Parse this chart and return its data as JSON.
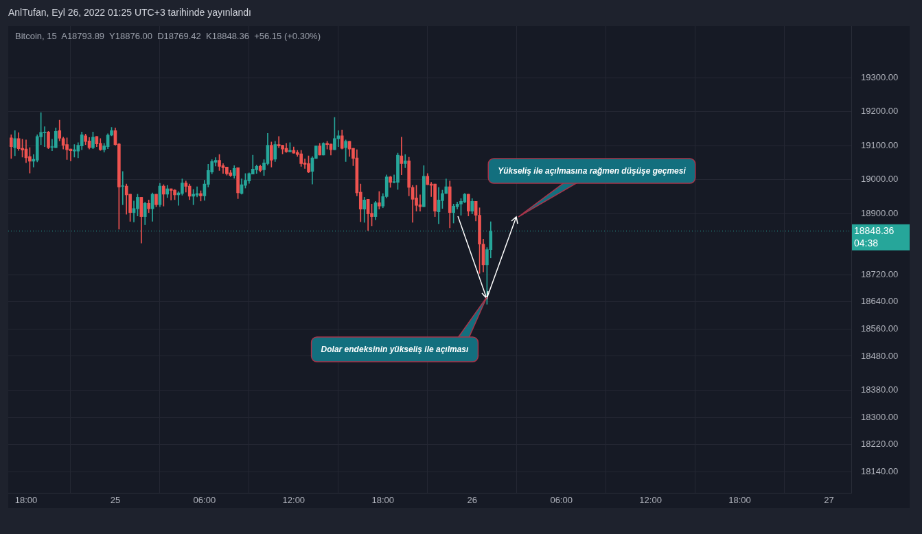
{
  "chart_data": {
    "type": "candlestick",
    "title": "AnlTufan, Eyl 26, 2022 01:25 UTC+3 tarihinde yayınlandı",
    "subtitle": "Bitcoin, 15  A18793.89  Y18876.00  D18769.42  K18848.36  +56.15 (+0.30%)",
    "x": [
      "2022-09-24T17:00",
      "2022-09-24T17:15",
      "2022-09-24T17:30",
      "2022-09-24T17:45",
      "2022-09-24T18:00",
      "2022-09-24T18:15",
      "2022-09-24T18:30",
      "2022-09-24T18:45",
      "2022-09-24T19:00",
      "2022-09-24T19:15",
      "2022-09-24T19:30",
      "2022-09-24T19:45",
      "2022-09-24T20:00",
      "2022-09-24T20:15",
      "2022-09-24T20:30",
      "2022-09-24T20:45",
      "2022-09-24T21:00",
      "2022-09-24T21:15",
      "2022-09-24T21:30",
      "2022-09-24T21:45",
      "2022-09-24T22:00",
      "2022-09-24T22:15",
      "2022-09-24T22:30",
      "2022-09-24T22:45",
      "2022-09-24T23:00",
      "2022-09-24T23:15",
      "2022-09-24T23:30",
      "2022-09-24T23:45",
      "2022-09-25T00:00",
      "2022-09-25T00:15",
      "2022-09-25T00:30",
      "2022-09-25T00:45",
      "2022-09-25T01:00",
      "2022-09-25T01:15",
      "2022-09-25T01:30",
      "2022-09-25T01:45",
      "2022-09-25T02:00",
      "2022-09-25T02:15",
      "2022-09-25T02:30",
      "2022-09-25T02:45",
      "2022-09-25T03:00",
      "2022-09-25T03:15",
      "2022-09-25T03:30",
      "2022-09-25T03:45",
      "2022-09-25T04:00",
      "2022-09-25T04:15",
      "2022-09-25T04:30",
      "2022-09-25T04:45",
      "2022-09-25T05:00",
      "2022-09-25T05:15",
      "2022-09-25T05:30",
      "2022-09-25T05:45",
      "2022-09-25T06:00",
      "2022-09-25T06:15",
      "2022-09-25T06:30",
      "2022-09-25T06:45",
      "2022-09-25T07:00",
      "2022-09-25T07:15",
      "2022-09-25T07:30",
      "2022-09-25T07:45",
      "2022-09-25T08:00",
      "2022-09-25T08:15",
      "2022-09-25T08:30",
      "2022-09-25T08:45",
      "2022-09-25T09:00",
      "2022-09-25T09:15",
      "2022-09-25T09:30",
      "2022-09-25T09:45",
      "2022-09-25T10:00",
      "2022-09-25T10:15",
      "2022-09-25T10:30",
      "2022-09-25T10:45",
      "2022-09-25T11:00",
      "2022-09-25T11:15",
      "2022-09-25T11:30",
      "2022-09-25T11:45",
      "2022-09-25T12:00",
      "2022-09-25T12:15",
      "2022-09-25T12:30",
      "2022-09-25T12:45",
      "2022-09-25T13:00",
      "2022-09-25T13:15",
      "2022-09-25T13:30",
      "2022-09-25T13:45",
      "2022-09-25T14:00",
      "2022-09-25T14:15",
      "2022-09-25T14:30",
      "2022-09-25T14:45",
      "2022-09-25T15:00",
      "2022-09-25T15:15",
      "2022-09-25T15:30",
      "2022-09-25T15:45",
      "2022-09-25T16:00",
      "2022-09-25T16:15",
      "2022-09-25T16:30",
      "2022-09-25T16:45",
      "2022-09-25T17:00",
      "2022-09-25T17:15",
      "2022-09-25T17:30",
      "2022-09-25T17:45",
      "2022-09-25T18:00",
      "2022-09-25T18:15",
      "2022-09-25T18:30",
      "2022-09-25T18:45",
      "2022-09-25T19:00",
      "2022-09-25T19:15",
      "2022-09-25T19:30",
      "2022-09-25T19:45",
      "2022-09-25T20:00",
      "2022-09-25T20:15",
      "2022-09-25T20:30",
      "2022-09-25T20:45",
      "2022-09-25T21:00",
      "2022-09-25T21:15",
      "2022-09-25T21:30",
      "2022-09-25T21:45",
      "2022-09-25T22:00",
      "2022-09-25T22:15",
      "2022-09-25T22:30",
      "2022-09-25T22:45",
      "2022-09-25T23:00",
      "2022-09-25T23:15",
      "2022-09-25T23:30",
      "2022-09-25T23:45",
      "2022-09-26T00:00",
      "2022-09-26T00:15",
      "2022-09-26T00:30",
      "2022-09-26T00:45",
      "2022-09-26T01:00",
      "2022-09-26T01:15"
    ],
    "ohlc": [
      [
        19123,
        19132,
        19062,
        19097
      ],
      [
        19094,
        19144,
        19070,
        19121
      ],
      [
        19121,
        19138,
        19086,
        19091
      ],
      [
        19092,
        19119,
        19066,
        19087
      ],
      [
        19090,
        19117,
        19050,
        19064
      ],
      [
        19068,
        19094,
        19019,
        19054
      ],
      [
        19054,
        19074,
        19037,
        19060
      ],
      [
        19057,
        19132,
        19052,
        19127
      ],
      [
        19126,
        19197,
        19103,
        19139
      ],
      [
        19138,
        19156,
        19097,
        19139
      ],
      [
        19140,
        19142,
        19091,
        19094
      ],
      [
        19095,
        19119,
        19085,
        19096
      ],
      [
        19094,
        19152,
        19094,
        19142
      ],
      [
        19144,
        19175,
        19114,
        19122
      ],
      [
        19121,
        19125,
        19090,
        19101
      ],
      [
        19103,
        19123,
        19059,
        19088
      ],
      [
        19090,
        19090,
        19055,
        19085
      ],
      [
        19084,
        19103,
        19066,
        19088
      ],
      [
        19084,
        19109,
        19064,
        19101
      ],
      [
        19099,
        19140,
        19088,
        19132
      ],
      [
        19129,
        19134,
        19103,
        19112
      ],
      [
        19114,
        19124,
        19090,
        19094
      ],
      [
        19094,
        19140,
        19091,
        19125
      ],
      [
        19127,
        19127,
        19097,
        19105
      ],
      [
        19107,
        19121,
        19086,
        19088
      ],
      [
        19088,
        19107,
        19081,
        19099
      ],
      [
        19097,
        19135,
        19091,
        19131
      ],
      [
        19131,
        19154,
        19129,
        19144
      ],
      [
        19144,
        19152,
        19101,
        19103
      ],
      [
        19105,
        19107,
        18854,
        18978
      ],
      [
        18980,
        19024,
        18926,
        18981
      ],
      [
        18981,
        18987,
        18898,
        18955
      ],
      [
        18957,
        18957,
        18877,
        18903
      ],
      [
        18903,
        18937,
        18875,
        18915
      ],
      [
        18914,
        18957,
        18893,
        18948
      ],
      [
        18948,
        18948,
        18813,
        18891
      ],
      [
        18891,
        18934,
        18867,
        18930
      ],
      [
        18930,
        18940,
        18903,
        18914
      ],
      [
        18914,
        18961,
        18877,
        18957
      ],
      [
        18957,
        18957,
        18920,
        18926
      ],
      [
        18926,
        18989,
        18920,
        18981
      ],
      [
        18981,
        18985,
        18922,
        18957
      ],
      [
        18957,
        18983,
        18947,
        18973
      ],
      [
        18973,
        18973,
        18940,
        18968
      ],
      [
        18969,
        18971,
        18941,
        18955
      ],
      [
        18955,
        18965,
        18924,
        18961
      ],
      [
        18959,
        19002,
        18954,
        18990
      ],
      [
        18990,
        18996,
        18963,
        18980
      ],
      [
        18981,
        18987,
        18941,
        18951
      ],
      [
        18951,
        18971,
        18926,
        18957
      ],
      [
        18954,
        18979,
        18949,
        18959
      ],
      [
        18959,
        18967,
        18937,
        18952
      ],
      [
        18952,
        18998,
        18939,
        18987
      ],
      [
        18986,
        19045,
        18978,
        19027
      ],
      [
        19022,
        19059,
        19017,
        19053
      ],
      [
        19051,
        19065,
        19040,
        19057
      ],
      [
        19057,
        19074,
        19027,
        19039
      ],
      [
        19041,
        19047,
        19018,
        19035
      ],
      [
        19037,
        19037,
        19013,
        19017
      ],
      [
        19020,
        19027,
        19009,
        19012
      ],
      [
        19012,
        19041,
        19004,
        19033
      ],
      [
        19035,
        19035,
        18944,
        18961
      ],
      [
        18959,
        19002,
        18957,
        18985
      ],
      [
        18983,
        19018,
        18975,
        18998
      ],
      [
        18996,
        19020,
        18989,
        19018
      ],
      [
        19016,
        19072,
        19016,
        19031
      ],
      [
        19029,
        19043,
        19018,
        19039
      ],
      [
        19039,
        19043,
        19022,
        19027
      ],
      [
        19029,
        19059,
        19012,
        19049
      ],
      [
        19047,
        19136,
        19043,
        19101
      ],
      [
        19101,
        19111,
        19037,
        19057
      ],
      [
        19060,
        19113,
        19053,
        19103
      ],
      [
        19103,
        19127,
        19094,
        19099
      ],
      [
        19101,
        19101,
        19076,
        19090
      ],
      [
        19092,
        19107,
        19080,
        19082
      ],
      [
        19082,
        19109,
        19082,
        19086
      ],
      [
        19086,
        19096,
        19078,
        19078
      ],
      [
        19080,
        19086,
        19068,
        19074
      ],
      [
        19076,
        19086,
        19039,
        19047
      ],
      [
        19049,
        19061,
        19033,
        19045
      ],
      [
        19047,
        19070,
        19020,
        19022
      ],
      [
        19024,
        19068,
        18987,
        19064
      ],
      [
        19062,
        19099,
        19062,
        19099
      ],
      [
        19099,
        19107,
        19072,
        19072
      ],
      [
        19072,
        19109,
        19072,
        19107
      ],
      [
        19107,
        19113,
        19090,
        19103
      ],
      [
        19105,
        19105,
        19072,
        19088
      ],
      [
        19088,
        19183,
        19088,
        19121
      ],
      [
        19120,
        19144,
        19097,
        19129
      ],
      [
        19129,
        19146,
        19090,
        19092
      ],
      [
        19094,
        19117,
        19053,
        19113
      ],
      [
        19113,
        19113,
        19068,
        19090
      ],
      [
        19092,
        19092,
        19041,
        19062
      ],
      [
        19064,
        19088,
        18952,
        18961
      ],
      [
        18963,
        18987,
        18876,
        18913
      ],
      [
        18913,
        18948,
        18874,
        18940
      ],
      [
        18942,
        18942,
        18850,
        18899
      ],
      [
        18901,
        18928,
        18864,
        18891
      ],
      [
        18891,
        18936,
        18882,
        18932
      ],
      [
        18932,
        18965,
        18913,
        18922
      ],
      [
        18922,
        18959,
        18917,
        18950
      ],
      [
        18950,
        19014,
        18946,
        19008
      ],
      [
        19008,
        19010,
        18977,
        18992
      ],
      [
        18992,
        19014,
        18990,
        18994
      ],
      [
        18992,
        19078,
        18971,
        19072
      ],
      [
        19070,
        19125,
        19014,
        19047
      ],
      [
        19047,
        19074,
        19035,
        19055
      ],
      [
        19055,
        19066,
        18952,
        18977
      ],
      [
        18977,
        18983,
        18874,
        18942
      ],
      [
        18946,
        18983,
        18907,
        18924
      ],
      [
        18926,
        18955,
        18907,
        18920
      ],
      [
        18920,
        19041,
        18920,
        19010
      ],
      [
        19010,
        19018,
        18985,
        18985
      ],
      [
        18987,
        18992,
        18950,
        18983
      ],
      [
        18987,
        18987,
        18891,
        18907
      ],
      [
        18905,
        18977,
        18870,
        18940
      ],
      [
        18938,
        18969,
        18915,
        18959
      ],
      [
        18959,
        19002,
        18959,
        18979
      ],
      [
        18979,
        18996,
        18858,
        18903
      ],
      [
        18903,
        18928,
        18872,
        18922
      ],
      [
        18920,
        18934,
        18913,
        18928
      ],
      [
        18928,
        18944,
        18895,
        18936
      ],
      [
        18934,
        18959,
        18932,
        18957
      ],
      [
        18957,
        18957,
        18893,
        18907
      ],
      [
        18907,
        18944,
        18899,
        18936
      ],
      [
        18936,
        18936,
        18878,
        18895
      ],
      [
        18895,
        18917,
        18724,
        18810
      ],
      [
        18810,
        18825,
        18728,
        18749
      ],
      [
        18749,
        18800,
        18633,
        18793.89
      ],
      [
        18793.89,
        18876,
        18769.42,
        18848.36
      ]
    ],
    "colors": [
      "#ef5350",
      "#26a69a",
      "#ef5350",
      "#ef5350",
      "#ef5350",
      "#ef5350",
      "#26a69a",
      "#26a69a",
      "#26a69a",
      "#26a69a",
      "#ef5350",
      "#26a69a",
      "#26a69a",
      "#ef5350",
      "#ef5350",
      "#ef5350",
      "#ef5350",
      "#26a69a",
      "#26a69a",
      "#26a69a",
      "#ef5350",
      "#ef5350",
      "#26a69a",
      "#ef5350",
      "#ef5350",
      "#26a69a",
      "#26a69a",
      "#26a69a",
      "#ef5350",
      "#ef5350",
      "#26a69a",
      "#ef5350",
      "#ef5350",
      "#26a69a",
      "#26a69a",
      "#ef5350",
      "#26a69a",
      "#ef5350",
      "#26a69a",
      "#ef5350",
      "#26a69a",
      "#ef5350",
      "#26a69a",
      "#ef5350",
      "#ef5350",
      "#26a69a",
      "#26a69a",
      "#ef5350",
      "#ef5350",
      "#26a69a",
      "#26a69a",
      "#ef5350",
      "#26a69a",
      "#26a69a",
      "#26a69a",
      "#26a69a",
      "#ef5350",
      "#ef5350",
      "#ef5350",
      "#ef5350",
      "#26a69a",
      "#ef5350",
      "#26a69a",
      "#26a69a",
      "#26a69a",
      "#26a69a",
      "#26a69a",
      "#ef5350",
      "#26a69a",
      "#26a69a",
      "#ef5350",
      "#26a69a",
      "#ef5350",
      "#ef5350",
      "#ef5350",
      "#26a69a",
      "#ef5350",
      "#ef5350",
      "#ef5350",
      "#ef5350",
      "#ef5350",
      "#26a69a",
      "#26a69a",
      "#ef5350",
      "#26a69a",
      "#ef5350",
      "#ef5350",
      "#26a69a",
      "#26a69a",
      "#ef5350",
      "#26a69a",
      "#ef5350",
      "#ef5350",
      "#ef5350",
      "#ef5350",
      "#26a69a",
      "#ef5350",
      "#ef5350",
      "#26a69a",
      "#ef5350",
      "#26a69a",
      "#26a69a",
      "#ef5350",
      "#26a69a",
      "#26a69a",
      "#ef5350",
      "#26a69a",
      "#ef5350",
      "#ef5350",
      "#ef5350",
      "#ef5350",
      "#26a69a",
      "#ef5350",
      "#ef5350",
      "#ef5350",
      "#26a69a",
      "#26a69a",
      "#26a69a",
      "#ef5350",
      "#26a69a",
      "#26a69a",
      "#26a69a",
      "#26a69a",
      "#ef5350",
      "#26a69a",
      "#ef5350",
      "#ef5350",
      "#ef5350",
      "#26a69a",
      "#26a69a"
    ],
    "xlim": [
      "2022-09-24T16:48",
      "2022-09-27T01:30"
    ],
    "xticks": [
      {
        "value": "2022-09-24T18:00",
        "label": "18:00"
      },
      {
        "value": "2022-09-25T00:00",
        "label": "25"
      },
      {
        "value": "2022-09-25T06:00",
        "label": "06:00"
      },
      {
        "value": "2022-09-25T12:00",
        "label": "12:00"
      },
      {
        "value": "2022-09-25T18:00",
        "label": "18:00"
      },
      {
        "value": "2022-09-26T00:00",
        "label": "26"
      },
      {
        "value": "2022-09-26T06:00",
        "label": "06:00"
      },
      {
        "value": "2022-09-26T12:00",
        "label": "12:00"
      },
      {
        "value": "2022-09-26T18:00",
        "label": "18:00"
      },
      {
        "value": "2022-09-27T00:00",
        "label": "27"
      }
    ],
    "ylim": [
      18077,
      19452
    ],
    "yticks": [
      {
        "value": 19300,
        "label": "19300.00"
      },
      {
        "value": 19200,
        "label": "19200.00"
      },
      {
        "value": 19100,
        "label": "19100.00"
      },
      {
        "value": 19000,
        "label": "19000.00"
      },
      {
        "value": 18900,
        "label": "18900.00"
      },
      {
        "value": 18720,
        "label": "18720.00"
      },
      {
        "value": 18640,
        "label": "18640.00"
      },
      {
        "value": 18560,
        "label": "18560.00"
      },
      {
        "value": 18480,
        "label": "18480.00"
      },
      {
        "value": 18380,
        "label": "18380.00"
      },
      {
        "value": 18300,
        "label": "18300.00"
      },
      {
        "value": 18220,
        "label": "18220.00"
      },
      {
        "value": 18140,
        "label": "18140.00"
      }
    ],
    "grid": true,
    "ref_lines": [
      {
        "axis": "y",
        "value": 18848.36,
        "label": "18848.36",
        "color": "#26a69a",
        "line_style": "dotted"
      }
    ],
    "annotations": [
      "04:38",
      "Dolar endeksinin yükseliş ile açılması",
      "Yükseliş ile açılmasına rağmen düşüşe geçmesi"
    ]
  }
}
